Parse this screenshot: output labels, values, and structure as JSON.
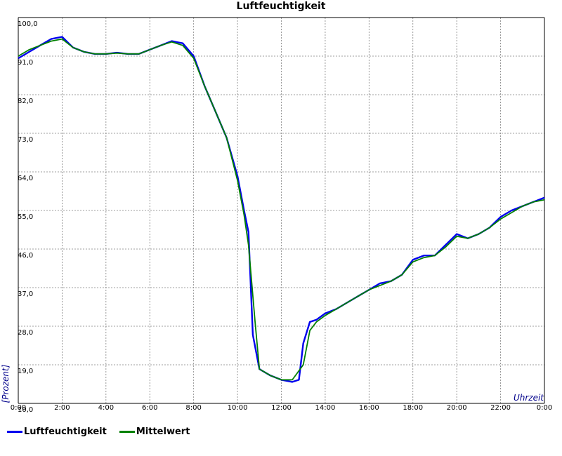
{
  "chart_data": {
    "type": "line",
    "title": "Luftfeuchtigkeit",
    "xlabel": "Uhrzeit",
    "ylabel": "[Prozent]",
    "xlim": [
      0,
      24
    ],
    "ylim": [
      10,
      100
    ],
    "grid": true,
    "legend_placement": "bottom-left",
    "x_ticks": [
      "0:00",
      "2:00",
      "4:00",
      "6:00",
      "8:00",
      "10:00",
      "12:00",
      "14:00",
      "16:00",
      "18:00",
      "20:00",
      "22:00",
      "0:00"
    ],
    "y_ticks": [
      "10,0",
      "19,0",
      "28,0",
      "37,0",
      "46,0",
      "55,0",
      "64,0",
      "73,0",
      "82,0",
      "91,0",
      "100,0"
    ],
    "series": [
      {
        "name": "Luftfeuchtigkeit",
        "color": "#0000ee",
        "x": [
          0,
          0.5,
          1,
          1.5,
          2,
          2.5,
          3,
          3.5,
          4,
          4.5,
          5,
          5.5,
          6,
          6.5,
          7,
          7.5,
          8,
          8.5,
          9,
          9.5,
          10,
          10.3,
          10.5,
          10.7,
          11,
          11.5,
          12,
          12.3,
          12.5,
          12.8,
          13,
          13.3,
          13.6,
          14,
          14.5,
          15,
          15.5,
          16,
          16.5,
          17,
          17.5,
          18,
          18.5,
          19,
          19.5,
          20,
          20.5,
          21,
          21.5,
          22,
          22.5,
          23,
          23.5,
          24
        ],
        "y": [
          90.5,
          92,
          93.5,
          95,
          95.5,
          93,
          92,
          91.5,
          91.5,
          91.8,
          91.5,
          91.5,
          92.5,
          93.5,
          94.5,
          94,
          91,
          84,
          78,
          72,
          63,
          55,
          50,
          26,
          18,
          16.5,
          15.5,
          15.2,
          15,
          15.5,
          24,
          29,
          29.5,
          31,
          32,
          33.5,
          35,
          36.5,
          38,
          38.5,
          40,
          43.5,
          44.5,
          44.5,
          47,
          49.5,
          48.5,
          49.5,
          51,
          53.5,
          55,
          56,
          57,
          58
        ]
      },
      {
        "name": "Mittelwert",
        "color": "#008000",
        "x": [
          0,
          0.5,
          1,
          1.5,
          2,
          2.5,
          3,
          3.5,
          4,
          4.5,
          5,
          5.5,
          6,
          6.5,
          7,
          7.5,
          8,
          8.5,
          9,
          9.5,
          10,
          10.3,
          10.5,
          10.8,
          11,
          11.5,
          12,
          12.5,
          13,
          13.3,
          13.6,
          14,
          14.5,
          15,
          15.5,
          16,
          16.5,
          17,
          17.5,
          18,
          18.5,
          19,
          19.5,
          20,
          20.5,
          21,
          21.5,
          22,
          22.5,
          23,
          23.5,
          24
        ],
        "y": [
          91,
          92.5,
          93.5,
          94.5,
          95,
          93,
          92,
          91.5,
          91.5,
          91.7,
          91.5,
          91.5,
          92.5,
          93.5,
          94.3,
          93.5,
          90.5,
          84,
          78,
          72,
          62,
          54,
          47,
          29,
          18,
          16.5,
          15.5,
          15.5,
          19,
          27,
          29,
          30.5,
          32,
          33.5,
          35,
          36.5,
          37.5,
          38.5,
          40,
          43,
          44,
          44.5,
          46.5,
          49,
          48.5,
          49.5,
          51,
          53,
          54.5,
          56,
          57,
          57.5
        ]
      }
    ]
  }
}
